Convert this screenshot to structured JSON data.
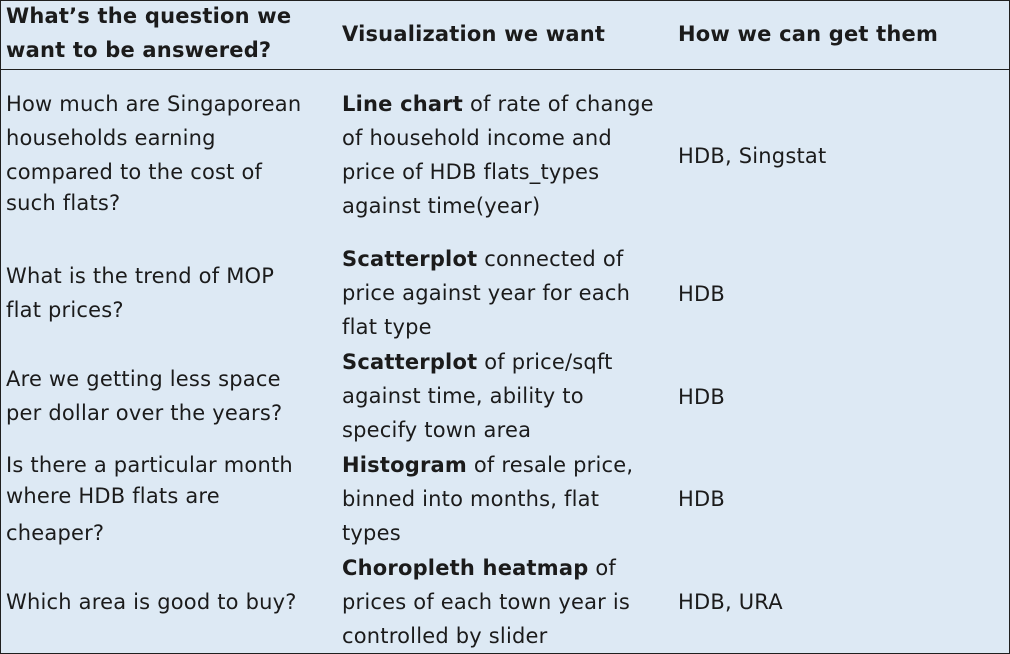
{
  "headers": {
    "question": [
      "What’s the question we",
      "want to be answered?"
    ],
    "visualization": "Visualization we want",
    "source": "How we can get them"
  },
  "rows": [
    {
      "question": [
        "How much are Singaporean",
        "households earning",
        "compared to the cost of",
        "such flats?"
      ],
      "viz_bold": "Line chart",
      "viz_lines": [
        " of rate of change",
        "of household income and",
        "price of HDB flats_types",
        "against time(year)"
      ],
      "source": "HDB, Singstat"
    },
    {
      "question": [
        "What is the trend of MOP",
        "flat prices?"
      ],
      "viz_bold": "Scatterplot",
      "viz_lines": [
        " connected of",
        "price against year for each",
        "flat type"
      ],
      "source": "HDB"
    },
    {
      "question": [
        "Are we getting less space",
        "per dollar over the years?"
      ],
      "viz_bold": "Scatterplot",
      "viz_lines": [
        " of price/sqft",
        "against time, ability to",
        "specify town area"
      ],
      "source": "HDB"
    },
    {
      "question": [
        "Is there a particular month",
        "where HDB flats  are",
        "cheaper?"
      ],
      "viz_bold": "Histogram",
      "viz_lines": [
        " of resale price,",
        "binned into months, flat",
        "types"
      ],
      "source": "HDB"
    },
    {
      "question": [
        "Which area is good to buy?"
      ],
      "viz_bold": "Choropleth heatmap",
      "viz_lines": [
        " of",
        "prices of each town year is",
        "controlled by slider"
      ],
      "source": "HDB, URA"
    }
  ]
}
